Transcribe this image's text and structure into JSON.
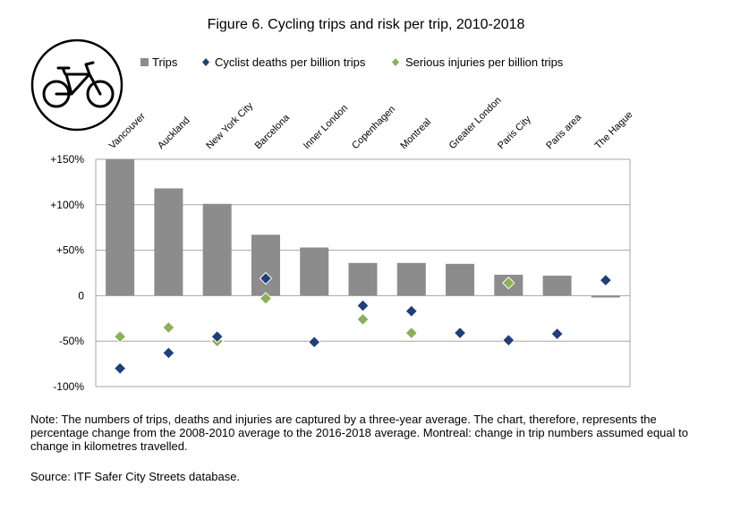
{
  "title": "Figure 6. Cycling trips and risk per trip, 2010-2018",
  "icon": "bicycle-icon",
  "note": "Note: The numbers of trips, deaths and injuries are captured by a three-year average. The chart, therefore, represents the percentage change from the 2008-2010 average to the 2016-2018 average. Montreal: change in trip numbers assumed equal to change in kilometres travelled.",
  "source": "Source: ITF Safer City Streets database.",
  "colors": {
    "trips": "#8c8c8c",
    "deaths": "#1f3f7a",
    "injuries": "#8bb05a",
    "axis": "#a6a6a6"
  },
  "chart_data": {
    "type": "bar",
    "title": "Figure 6. Cycling trips and risk per trip, 2010-2018",
    "categories": [
      "Vancouver",
      "Auckland",
      "New York City",
      "Barcelona",
      "Inner London",
      "Copenhagen",
      "Montreal",
      "Greater London",
      "Paris City",
      "Paris area",
      "The Hague"
    ],
    "ylim": [
      -100,
      150
    ],
    "yticks": [
      {
        "value": 150,
        "label": "+150%"
      },
      {
        "value": 100,
        "label": "+100%"
      },
      {
        "value": 50,
        "label": "+50%"
      },
      {
        "value": 0,
        "label": "0"
      },
      {
        "value": -50,
        "label": "-50%"
      },
      {
        "value": -100,
        "label": "-100%"
      }
    ],
    "legend_placement": "top",
    "series": [
      {
        "name": "Trips",
        "kind": "bar",
        "values": [
          150,
          118,
          101,
          67,
          53,
          36,
          36,
          35,
          23,
          22,
          -2
        ]
      },
      {
        "name": "Cyclist deaths per billion trips",
        "kind": "marker",
        "values": [
          -80,
          -63,
          -45,
          19,
          -51,
          -11,
          -17,
          -41,
          -49,
          -42,
          17
        ]
      },
      {
        "name": "Serious injuries per billion trips",
        "kind": "marker",
        "values": [
          -45,
          -35,
          -50,
          -3,
          null,
          -26,
          -41,
          null,
          14,
          null,
          null
        ]
      }
    ]
  }
}
